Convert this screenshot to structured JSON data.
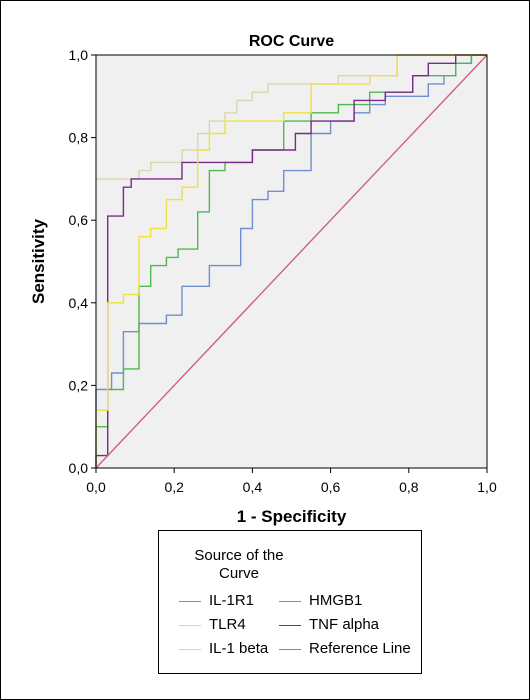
{
  "chart_data": {
    "type": "line",
    "title": "ROC Curve",
    "xlabel": "1 - Specificity",
    "ylabel": "Sensitivity",
    "xlim": [
      0,
      1
    ],
    "ylim": [
      0,
      1
    ],
    "x_ticks": [
      "0,0",
      "0,2",
      "0,4",
      "0,6",
      "0,8",
      "1,0"
    ],
    "y_ticks": [
      "0,0",
      "0,2",
      "0,4",
      "0,6",
      "0,8",
      "1,0"
    ],
    "grid": false,
    "plot_background": "#f0f0f0",
    "legend_title": "Source of the\nCurve",
    "legend_position": "bottom-center",
    "series": [
      {
        "name": "IL-1R1",
        "color": "#6f8fcf",
        "points": [
          [
            0,
            0
          ],
          [
            0,
            0.19
          ],
          [
            0.04,
            0.19
          ],
          [
            0.04,
            0.23
          ],
          [
            0.07,
            0.23
          ],
          [
            0.07,
            0.25
          ],
          [
            0.07,
            0.33
          ],
          [
            0.11,
            0.33
          ],
          [
            0.11,
            0.35
          ],
          [
            0.18,
            0.35
          ],
          [
            0.18,
            0.37
          ],
          [
            0.22,
            0.37
          ],
          [
            0.22,
            0.42
          ],
          [
            0.22,
            0.44
          ],
          [
            0.29,
            0.44
          ],
          [
            0.29,
            0.49
          ],
          [
            0.37,
            0.49
          ],
          [
            0.37,
            0.58
          ],
          [
            0.4,
            0.58
          ],
          [
            0.4,
            0.65
          ],
          [
            0.44,
            0.65
          ],
          [
            0.44,
            0.67
          ],
          [
            0.48,
            0.67
          ],
          [
            0.48,
            0.72
          ],
          [
            0.55,
            0.72
          ],
          [
            0.55,
            0.81
          ],
          [
            0.6,
            0.81
          ],
          [
            0.6,
            0.84
          ],
          [
            0.66,
            0.84
          ],
          [
            0.66,
            0.86
          ],
          [
            0.7,
            0.86
          ],
          [
            0.7,
            0.88
          ],
          [
            0.74,
            0.88
          ],
          [
            0.74,
            0.9
          ],
          [
            0.85,
            0.9
          ],
          [
            0.85,
            0.93
          ],
          [
            0.89,
            0.93
          ],
          [
            0.89,
            0.95
          ],
          [
            0.92,
            0.95
          ],
          [
            0.92,
            0.98
          ],
          [
            0.96,
            0.98
          ],
          [
            0.96,
            1
          ],
          [
            1,
            1
          ]
        ]
      },
      {
        "name": "HMGB1",
        "color": "#50b850",
        "points": [
          [
            0,
            0
          ],
          [
            0,
            0.1
          ],
          [
            0.03,
            0.1
          ],
          [
            0.03,
            0.19
          ],
          [
            0.07,
            0.19
          ],
          [
            0.07,
            0.24
          ],
          [
            0.11,
            0.24
          ],
          [
            0.11,
            0.44
          ],
          [
            0.14,
            0.44
          ],
          [
            0.14,
            0.49
          ],
          [
            0.18,
            0.49
          ],
          [
            0.18,
            0.51
          ],
          [
            0.21,
            0.51
          ],
          [
            0.21,
            0.53
          ],
          [
            0.26,
            0.53
          ],
          [
            0.26,
            0.62
          ],
          [
            0.29,
            0.62
          ],
          [
            0.29,
            0.72
          ],
          [
            0.33,
            0.72
          ],
          [
            0.33,
            0.74
          ],
          [
            0.4,
            0.74
          ],
          [
            0.4,
            0.77
          ],
          [
            0.48,
            0.77
          ],
          [
            0.48,
            0.84
          ],
          [
            0.55,
            0.84
          ],
          [
            0.55,
            0.86
          ],
          [
            0.62,
            0.86
          ],
          [
            0.62,
            0.88
          ],
          [
            0.7,
            0.88
          ],
          [
            0.7,
            0.91
          ],
          [
            0.81,
            0.91
          ],
          [
            0.81,
            0.95
          ],
          [
            0.92,
            0.95
          ],
          [
            0.92,
            0.98
          ],
          [
            0.96,
            0.98
          ],
          [
            0.96,
            1
          ],
          [
            1,
            1
          ]
        ]
      },
      {
        "name": "TLR4",
        "color": "#d8d8b0",
        "points": [
          [
            0,
            0.7
          ],
          [
            0.11,
            0.7
          ],
          [
            0.11,
            0.72
          ],
          [
            0.14,
            0.72
          ],
          [
            0.14,
            0.74
          ],
          [
            0.22,
            0.74
          ],
          [
            0.22,
            0.77
          ],
          [
            0.26,
            0.77
          ],
          [
            0.26,
            0.81
          ],
          [
            0.29,
            0.81
          ],
          [
            0.29,
            0.84
          ],
          [
            0.33,
            0.84
          ],
          [
            0.33,
            0.86
          ],
          [
            0.36,
            0.86
          ],
          [
            0.36,
            0.89
          ],
          [
            0.4,
            0.89
          ],
          [
            0.4,
            0.91
          ],
          [
            0.44,
            0.91
          ],
          [
            0.44,
            0.93
          ],
          [
            0.62,
            0.93
          ],
          [
            0.62,
            0.95
          ],
          [
            0.77,
            0.95
          ],
          [
            0.77,
            1
          ],
          [
            1,
            1
          ]
        ]
      },
      {
        "name": "TNF alpha",
        "color": "#7a2a8a",
        "points": [
          [
            0,
            0
          ],
          [
            0,
            0.03
          ],
          [
            0.03,
            0.03
          ],
          [
            0.03,
            0.61
          ],
          [
            0.07,
            0.61
          ],
          [
            0.07,
            0.68
          ],
          [
            0.09,
            0.68
          ],
          [
            0.09,
            0.7
          ],
          [
            0.22,
            0.7
          ],
          [
            0.22,
            0.74
          ],
          [
            0.4,
            0.74
          ],
          [
            0.4,
            0.77
          ],
          [
            0.51,
            0.77
          ],
          [
            0.51,
            0.81
          ],
          [
            0.55,
            0.81
          ],
          [
            0.55,
            0.84
          ],
          [
            0.66,
            0.84
          ],
          [
            0.66,
            0.89
          ],
          [
            0.74,
            0.89
          ],
          [
            0.74,
            0.91
          ],
          [
            0.81,
            0.91
          ],
          [
            0.81,
            0.95
          ],
          [
            0.85,
            0.95
          ],
          [
            0.85,
            0.98
          ],
          [
            0.92,
            0.98
          ],
          [
            0.92,
            1
          ],
          [
            1,
            1
          ]
        ]
      },
      {
        "name": "IL-1 beta",
        "color": "#f0e040",
        "points": [
          [
            0,
            0
          ],
          [
            0,
            0.14
          ],
          [
            0.03,
            0.14
          ],
          [
            0.03,
            0.4
          ],
          [
            0.07,
            0.4
          ],
          [
            0.07,
            0.42
          ],
          [
            0.11,
            0.42
          ],
          [
            0.11,
            0.56
          ],
          [
            0.14,
            0.56
          ],
          [
            0.14,
            0.58
          ],
          [
            0.18,
            0.58
          ],
          [
            0.18,
            0.65
          ],
          [
            0.22,
            0.65
          ],
          [
            0.22,
            0.68
          ],
          [
            0.26,
            0.68
          ],
          [
            0.26,
            0.77
          ],
          [
            0.29,
            0.77
          ],
          [
            0.29,
            0.81
          ],
          [
            0.33,
            0.81
          ],
          [
            0.33,
            0.84
          ],
          [
            0.48,
            0.84
          ],
          [
            0.48,
            0.86
          ],
          [
            0.55,
            0.86
          ],
          [
            0.55,
            0.93
          ],
          [
            0.7,
            0.93
          ],
          [
            0.7,
            0.95
          ],
          [
            0.77,
            0.95
          ],
          [
            0.77,
            1
          ],
          [
            1,
            1
          ]
        ]
      },
      {
        "name": "Reference Line",
        "color": "#d06080",
        "points": [
          [
            0,
            0
          ],
          [
            1,
            1
          ]
        ]
      }
    ]
  }
}
